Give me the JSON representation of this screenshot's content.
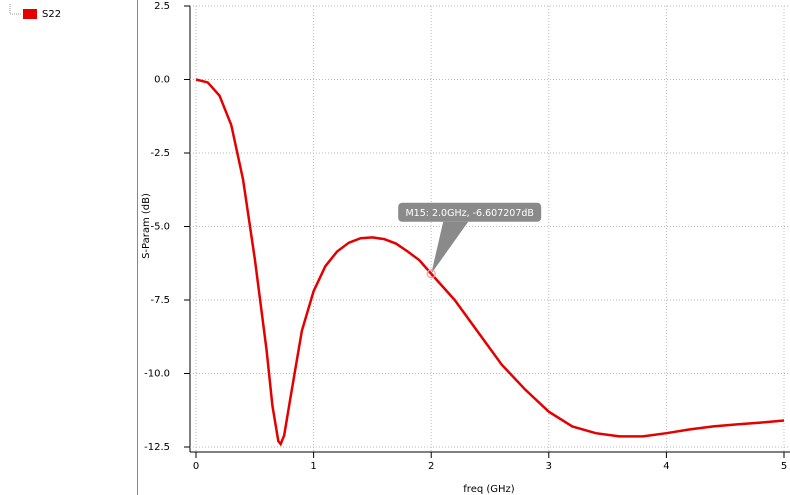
{
  "chart_data": {
    "type": "line",
    "xlabel": "freq (GHz)",
    "ylabel": "S-Param (dB)",
    "x": [
      0,
      0.1,
      0.2,
      0.3,
      0.4,
      0.5,
      0.6,
      0.65,
      0.7,
      0.72,
      0.75,
      0.8,
      0.9,
      1.0,
      1.1,
      1.2,
      1.3,
      1.4,
      1.5,
      1.6,
      1.7,
      1.8,
      1.9,
      2.0,
      2.2,
      2.4,
      2.6,
      2.8,
      3.0,
      3.2,
      3.4,
      3.6,
      3.8,
      4.0,
      4.2,
      4.4,
      4.6,
      4.8,
      5.0
    ],
    "series": [
      {
        "name": "S22",
        "color": "#e50000",
        "values": [
          0.0,
          -0.1,
          -0.55,
          -1.55,
          -3.4,
          -6.1,
          -9.2,
          -11.1,
          -12.3,
          -12.4,
          -12.1,
          -10.9,
          -8.55,
          -7.2,
          -6.35,
          -5.85,
          -5.55,
          -5.4,
          -5.37,
          -5.43,
          -5.58,
          -5.85,
          -6.15,
          -6.607207,
          -7.5,
          -8.6,
          -9.7,
          -10.55,
          -11.3,
          -11.8,
          -12.03,
          -12.14,
          -12.14,
          -12.03,
          -11.9,
          -11.8,
          -11.73,
          -11.67,
          -11.6
        ]
      }
    ],
    "xlim": [
      0,
      5
    ],
    "xticks": [
      0,
      1,
      2,
      3,
      4,
      5
    ],
    "ylim": [
      -12.5,
      2.5
    ],
    "yticks": [
      2.5,
      {
        "value": 0,
        "label": "0.0"
      },
      -2.5,
      {
        "value": -5,
        "label": "-5.0"
      },
      -7.5,
      {
        "value": -10,
        "label": "-10.0"
      },
      -12.5
    ],
    "grid": true,
    "marker": {
      "x": 2.0,
      "y": -6.607207,
      "label": "M15: 2.0GHz, -6.607207dB"
    }
  }
}
